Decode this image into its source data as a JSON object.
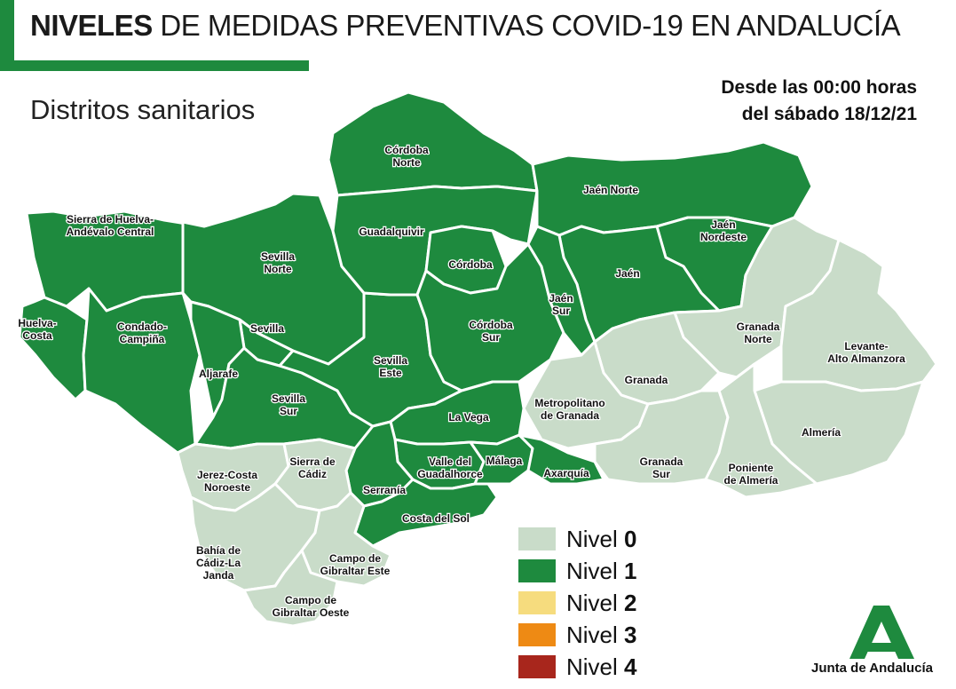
{
  "header": {
    "title_strong": "NIVELES",
    "title_rest": "DE MEDIDAS PREVENTIVAS COVID-19 EN ANDALUCÍA",
    "subtitle": "Distritos sanitarios",
    "date_line1": "Desde las 00:00 horas",
    "date_line2": "del sábado 18/12/21"
  },
  "colors": {
    "nivel0": "#c9dcc9",
    "nivel1": "#1e8a3e",
    "nivel2": "#f6dc7e",
    "nivel3": "#ee8a14",
    "nivel4": "#a8261c"
  },
  "districts": [
    {
      "id": "sierra-huelva",
      "lines": [
        "Sierra de Huelva-",
        "Andévalo Central"
      ],
      "level": 1
    },
    {
      "id": "huelva-costa",
      "lines": [
        "Huelva-",
        "Costa"
      ],
      "level": 1
    },
    {
      "id": "condado-campina",
      "lines": [
        "Condado-",
        "Campiña"
      ],
      "level": 1
    },
    {
      "id": "sevilla-norte",
      "lines": [
        "Sevilla",
        "Norte"
      ],
      "level": 1
    },
    {
      "id": "sevilla",
      "lines": [
        "Sevilla"
      ],
      "level": 1
    },
    {
      "id": "aljarafe",
      "lines": [
        "Aljarafe"
      ],
      "level": 1
    },
    {
      "id": "sevilla-sur",
      "lines": [
        "Sevilla",
        "Sur"
      ],
      "level": 1
    },
    {
      "id": "sevilla-este",
      "lines": [
        "Sevilla",
        "Este"
      ],
      "level": 1
    },
    {
      "id": "cordoba-norte",
      "lines": [
        "Córdoba",
        "Norte"
      ],
      "level": 1
    },
    {
      "id": "guadalquivir",
      "lines": [
        "Guadalquivir"
      ],
      "level": 1
    },
    {
      "id": "cordoba",
      "lines": [
        "Córdoba"
      ],
      "level": 1
    },
    {
      "id": "cordoba-sur",
      "lines": [
        "Córdoba",
        "Sur"
      ],
      "level": 1
    },
    {
      "id": "jaen-norte",
      "lines": [
        "Jaén Norte"
      ],
      "level": 1
    },
    {
      "id": "jaen-nordeste",
      "lines": [
        "Jaén",
        "Nordeste"
      ],
      "level": 1
    },
    {
      "id": "jaen",
      "lines": [
        "Jaén"
      ],
      "level": 1
    },
    {
      "id": "jaen-sur",
      "lines": [
        "Jaén",
        "Sur"
      ],
      "level": 1
    },
    {
      "id": "la-vega",
      "lines": [
        "La Vega"
      ],
      "level": 1
    },
    {
      "id": "valle-guadalhorce",
      "lines": [
        "Valle del",
        "Guadalhorce"
      ],
      "level": 1
    },
    {
      "id": "malaga",
      "lines": [
        "Málaga"
      ],
      "level": 1
    },
    {
      "id": "axarquia",
      "lines": [
        "Axarquía"
      ],
      "level": 1
    },
    {
      "id": "serrania",
      "lines": [
        "Serranía"
      ],
      "level": 1
    },
    {
      "id": "costa-del-sol",
      "lines": [
        "Costa del Sol"
      ],
      "level": 1
    },
    {
      "id": "granada-norte",
      "lines": [
        "Granada",
        "Norte"
      ],
      "level": 0
    },
    {
      "id": "levante-almanzora",
      "lines": [
        "Levante-",
        "Alto Almanzora"
      ],
      "level": 0
    },
    {
      "id": "granada",
      "lines": [
        "Granada"
      ],
      "level": 0
    },
    {
      "id": "metropolitano-granada",
      "lines": [
        "Metropolitano",
        "de Granada"
      ],
      "level": 0
    },
    {
      "id": "almeria",
      "lines": [
        "Almería"
      ],
      "level": 0
    },
    {
      "id": "granada-sur",
      "lines": [
        "Granada",
        "Sur"
      ],
      "level": 0
    },
    {
      "id": "poniente-almeria",
      "lines": [
        "Poniente",
        "de Almería"
      ],
      "level": 0
    },
    {
      "id": "jerez-costa-noroeste",
      "lines": [
        "Jerez-Costa",
        "Noroeste"
      ],
      "level": 0
    },
    {
      "id": "sierra-cadiz",
      "lines": [
        "Sierra de",
        "Cádiz"
      ],
      "level": 0
    },
    {
      "id": "bahia-cadiz",
      "lines": [
        "Bahía de",
        "Cádiz-La",
        "Janda"
      ],
      "level": 0
    },
    {
      "id": "campo-gibraltar-este",
      "lines": [
        "Campo de",
        "Gibraltar Este"
      ],
      "level": 0
    },
    {
      "id": "campo-gibraltar-oeste",
      "lines": [
        "Campo de",
        "Gibraltar Oeste"
      ],
      "level": 0
    }
  ],
  "legend": [
    {
      "word": "Nivel",
      "num": "0",
      "color_key": "nivel0"
    },
    {
      "word": "Nivel",
      "num": "1",
      "color_key": "nivel1"
    },
    {
      "word": "Nivel",
      "num": "2",
      "color_key": "nivel2"
    },
    {
      "word": "Nivel",
      "num": "3",
      "color_key": "nivel3"
    },
    {
      "word": "Nivel",
      "num": "4",
      "color_key": "nivel4"
    }
  ],
  "logo": {
    "icon": "junta-de-andalucia-logo",
    "text": "Junta de Andalucía"
  }
}
